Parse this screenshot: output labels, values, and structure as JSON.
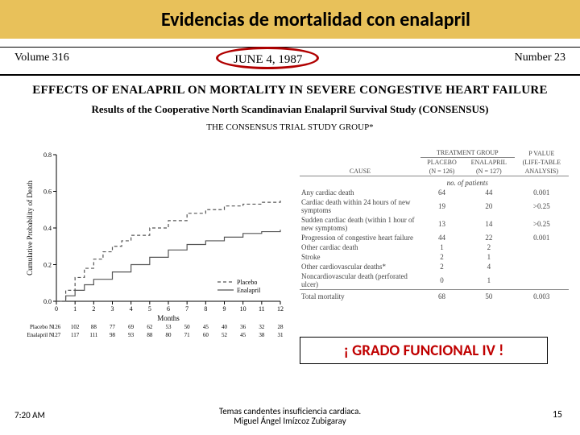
{
  "slide": {
    "title": "Evidencias de mortalidad con enalapril",
    "journal": {
      "volume": "Volume 316",
      "date": "JUNE 4, 1987",
      "number": "Number 23"
    },
    "paper": {
      "title": "EFFECTS OF ENALAPRIL ON MORTALITY IN SEVERE CONGESTIVE HEART FAILURE",
      "subtitle": "Results of the Cooperative North Scandinavian Enalapril Survival Study (CONSENSUS)",
      "author": "THE CONSENSUS TRIAL STUDY GROUP*"
    },
    "callout": "¡ GRADO FUNCIONAL IV !",
    "footer": {
      "time": "7:20 AM",
      "line1": "Temas candentes insuficiencia cardiaca.",
      "line2": "Miguel Ángel Imízcoz Zubigaray",
      "page": "15"
    }
  },
  "chart": {
    "type": "step-line",
    "ylabel": "Cumulative Probability of Death",
    "xlabel": "Months",
    "ylim": [
      0,
      0.8
    ],
    "yticks": [
      0,
      0.2,
      0.4,
      0.6,
      0.8
    ],
    "xlim": [
      0,
      12
    ],
    "xticks": [
      0,
      1,
      2,
      3,
      4,
      5,
      6,
      7,
      8,
      9,
      10,
      11,
      12
    ],
    "series": [
      {
        "name": "Placebo",
        "dash": "4,3",
        "color": "#555555",
        "points": [
          [
            0,
            0
          ],
          [
            0.5,
            0.06
          ],
          [
            1,
            0.13
          ],
          [
            1.5,
            0.18
          ],
          [
            2,
            0.23
          ],
          [
            2.5,
            0.27
          ],
          [
            3,
            0.3
          ],
          [
            3.5,
            0.33
          ],
          [
            4,
            0.36
          ],
          [
            5,
            0.4
          ],
          [
            6,
            0.44
          ],
          [
            7,
            0.48
          ],
          [
            8,
            0.5
          ],
          [
            9,
            0.52
          ],
          [
            10,
            0.53
          ],
          [
            11,
            0.54
          ],
          [
            12,
            0.55
          ]
        ]
      },
      {
        "name": "Enalapril",
        "dash": "none",
        "color": "#555555",
        "points": [
          [
            0,
            0
          ],
          [
            0.5,
            0.03
          ],
          [
            1,
            0.06
          ],
          [
            1.5,
            0.09
          ],
          [
            2,
            0.12
          ],
          [
            3,
            0.16
          ],
          [
            4,
            0.2
          ],
          [
            5,
            0.24
          ],
          [
            6,
            0.28
          ],
          [
            7,
            0.31
          ],
          [
            8,
            0.33
          ],
          [
            9,
            0.35
          ],
          [
            10,
            0.37
          ],
          [
            11,
            0.38
          ],
          [
            12,
            0.39
          ]
        ]
      }
    ],
    "atrisk": {
      "label_placebo": "Placebo N",
      "label_enalapril": "Enalapril N",
      "placebo": [
        126,
        102,
        88,
        77,
        69,
        62,
        53,
        50,
        45,
        40,
        36,
        32,
        28
      ],
      "enalapril": [
        127,
        117,
        111,
        98,
        93,
        88,
        80,
        71,
        60,
        52,
        45,
        38,
        31
      ]
    },
    "font_size": 8,
    "line_width": 1.2,
    "background_color": "#ffffff"
  },
  "table": {
    "type": "table",
    "col_headers": {
      "cause": "CAUSE",
      "group": "TREATMENT GROUP",
      "placebo": "PLACEBO",
      "placebo_n": "(N = 126)",
      "enalapril": "ENALAPRIL",
      "enalapril_n": "(N = 127)",
      "pvalue1": "P VALUE",
      "pvalue2": "(LIFE-TABLE",
      "pvalue3": "ANALYSIS)"
    },
    "nop": "no. of patients",
    "rows": [
      {
        "label": "Any cardiac death",
        "indent": false,
        "placebo": "64",
        "enalapril": "44",
        "p": "0.001"
      },
      {
        "label": "Cardiac death within 24 hours of new symptoms",
        "indent": true,
        "placebo": "19",
        "enalapril": "20",
        "p": ">0.25"
      },
      {
        "label": "Sudden cardiac death (within 1 hour of new symptoms)",
        "indent": true,
        "placebo": "13",
        "enalapril": "14",
        "p": ">0.25"
      },
      {
        "label": "Progression of congestive heart failure",
        "indent": true,
        "placebo": "44",
        "enalapril": "22",
        "p": "0.001"
      },
      {
        "label": "Other cardiac death",
        "indent": true,
        "placebo": "1",
        "enalapril": "2",
        "p": ""
      },
      {
        "label": "Stroke",
        "indent": false,
        "placebo": "2",
        "enalapril": "1",
        "p": ""
      },
      {
        "label": "Other cardiovascular deaths*",
        "indent": false,
        "placebo": "2",
        "enalapril": "4",
        "p": ""
      },
      {
        "label": "Noncardiovascular death (perforated ulcer)",
        "indent": false,
        "placebo": "0",
        "enalapril": "1",
        "p": ""
      },
      {
        "label": "Total mortality",
        "indent": false,
        "placebo": "68",
        "enalapril": "50",
        "p": "0.003"
      }
    ],
    "font_size": 9,
    "text_color": "#444444"
  },
  "colors": {
    "title_bar": "#e8c15a",
    "circle": "#b00000",
    "callout_text": "#c00000",
    "background": "#ffffff"
  }
}
